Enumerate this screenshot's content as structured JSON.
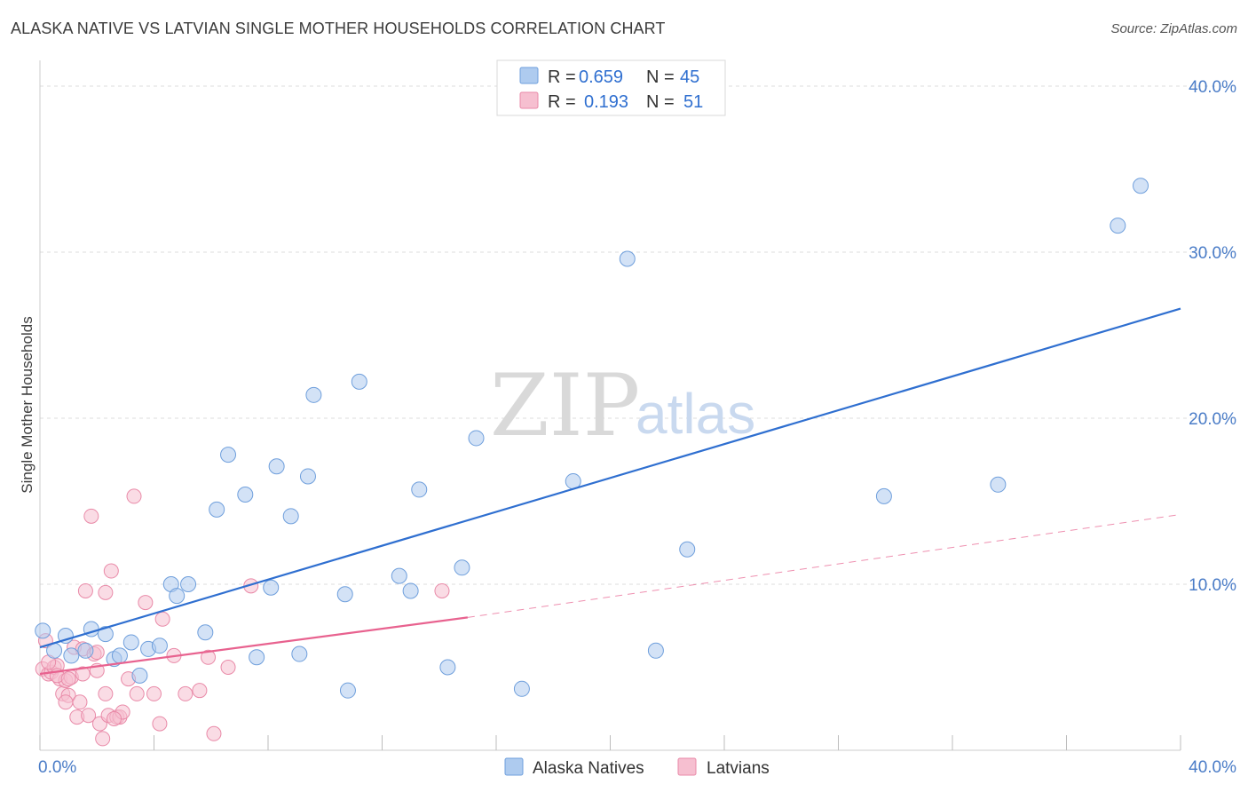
{
  "title": "ALASKA NATIVE VS LATVIAN SINGLE MOTHER HOUSEHOLDS CORRELATION CHART",
  "source": "Source: ZipAtlas.com",
  "watermark": {
    "zip": "ZIP",
    "atlas": "atlas"
  },
  "colors": {
    "blue_fill": "#aecbef",
    "blue_stroke": "#6f9fdc",
    "blue_line": "#2f6fd0",
    "pink_fill": "#f6bfd0",
    "pink_stroke": "#e98aa8",
    "pink_line": "#e8628f",
    "grid": "#dcdcdc",
    "tick_text": "#4a7cc7"
  },
  "legend": {
    "r_label": "R =",
    "n_label": "N =",
    "rows": [
      {
        "name": "Alaska Natives",
        "r": "0.659",
        "n": "45"
      },
      {
        "name": "Latvians",
        "r": "0.193",
        "n": "51"
      }
    ]
  },
  "chart_data": {
    "type": "scatter",
    "title": "ALASKA NATIVE VS LATVIAN SINGLE MOTHER HOUSEHOLDS CORRELATION CHART",
    "xlabel": "",
    "ylabel": "Single Mother Households",
    "xlim": [
      0,
      40
    ],
    "ylim": [
      0,
      40
    ],
    "x_tick_labels": [
      "0.0%",
      "40.0%"
    ],
    "x_ticks": [
      0,
      4,
      8,
      12,
      16,
      20,
      24,
      28,
      32,
      36,
      40
    ],
    "y_ticks": [
      10,
      20,
      30,
      40
    ],
    "y_tick_labels": [
      "10.0%",
      "20.0%",
      "30.0%",
      "40.0%"
    ],
    "grid": true,
    "series": [
      {
        "name": "Alaska Natives",
        "points": [
          [
            0.1,
            7.2
          ],
          [
            0.5,
            6.0
          ],
          [
            0.9,
            6.9
          ],
          [
            1.1,
            5.7
          ],
          [
            1.6,
            6.0
          ],
          [
            1.8,
            7.3
          ],
          [
            2.3,
            7.0
          ],
          [
            2.6,
            5.5
          ],
          [
            2.8,
            5.7
          ],
          [
            3.2,
            6.5
          ],
          [
            3.5,
            4.5
          ],
          [
            3.8,
            6.1
          ],
          [
            4.2,
            6.3
          ],
          [
            4.6,
            10.0
          ],
          [
            4.8,
            9.3
          ],
          [
            5.2,
            10.0
          ],
          [
            5.8,
            7.1
          ],
          [
            6.2,
            14.5
          ],
          [
            6.6,
            17.8
          ],
          [
            7.2,
            15.4
          ],
          [
            7.6,
            5.6
          ],
          [
            8.1,
            9.8
          ],
          [
            8.3,
            17.1
          ],
          [
            8.8,
            14.1
          ],
          [
            9.1,
            5.8
          ],
          [
            9.4,
            16.5
          ],
          [
            9.6,
            21.4
          ],
          [
            10.7,
            9.4
          ],
          [
            10.8,
            3.6
          ],
          [
            11.2,
            22.2
          ],
          [
            12.6,
            10.5
          ],
          [
            13.0,
            9.6
          ],
          [
            13.3,
            15.7
          ],
          [
            14.3,
            5.0
          ],
          [
            14.8,
            11.0
          ],
          [
            15.3,
            18.8
          ],
          [
            16.9,
            3.7
          ],
          [
            18.7,
            16.2
          ],
          [
            20.6,
            29.6
          ],
          [
            21.6,
            6.0
          ],
          [
            22.7,
            12.1
          ],
          [
            29.6,
            15.3
          ],
          [
            33.6,
            16.0
          ],
          [
            37.8,
            31.6
          ],
          [
            38.6,
            34.0
          ]
        ],
        "trend": {
          "x": [
            0,
            40
          ],
          "y": [
            6.2,
            26.6
          ]
        }
      },
      {
        "name": "Latvians",
        "points": [
          [
            0.1,
            4.9
          ],
          [
            0.2,
            6.6
          ],
          [
            0.3,
            4.6
          ],
          [
            0.4,
            4.7
          ],
          [
            0.5,
            5.0
          ],
          [
            0.6,
            5.1
          ],
          [
            0.7,
            4.3
          ],
          [
            0.8,
            3.4
          ],
          [
            0.9,
            4.2
          ],
          [
            1.0,
            3.3
          ],
          [
            1.1,
            4.4
          ],
          [
            1.2,
            6.2
          ],
          [
            1.3,
            2.0
          ],
          [
            1.4,
            2.9
          ],
          [
            1.5,
            6.1
          ],
          [
            1.6,
            9.6
          ],
          [
            1.7,
            2.1
          ],
          [
            1.8,
            14.1
          ],
          [
            1.9,
            5.8
          ],
          [
            2.0,
            4.8
          ],
          [
            2.1,
            1.6
          ],
          [
            2.2,
            0.7
          ],
          [
            2.3,
            3.4
          ],
          [
            2.3,
            9.5
          ],
          [
            2.4,
            2.1
          ],
          [
            2.5,
            10.8
          ],
          [
            2.7,
            2.0
          ],
          [
            2.8,
            2.0
          ],
          [
            2.9,
            2.3
          ],
          [
            3.1,
            4.3
          ],
          [
            3.3,
            15.3
          ],
          [
            3.4,
            3.4
          ],
          [
            3.7,
            8.9
          ],
          [
            4.0,
            3.4
          ],
          [
            4.2,
            1.6
          ],
          [
            4.3,
            7.9
          ],
          [
            4.7,
            5.7
          ],
          [
            5.1,
            3.4
          ],
          [
            5.6,
            3.6
          ],
          [
            5.9,
            5.6
          ],
          [
            6.1,
            1.0
          ],
          [
            6.6,
            5.0
          ],
          [
            7.4,
            9.9
          ],
          [
            14.1,
            9.6
          ],
          [
            0.6,
            4.5
          ],
          [
            1.0,
            4.3
          ],
          [
            1.5,
            4.6
          ],
          [
            2.0,
            5.9
          ],
          [
            2.6,
            1.9
          ],
          [
            0.3,
            5.3
          ],
          [
            0.9,
            2.9
          ]
        ],
        "trend": {
          "x": [
            0,
            15
          ],
          "y": [
            4.6,
            8.0
          ]
        },
        "trend_extension": {
          "x": [
            15,
            40
          ],
          "y": [
            8.0,
            14.2
          ]
        }
      }
    ]
  }
}
